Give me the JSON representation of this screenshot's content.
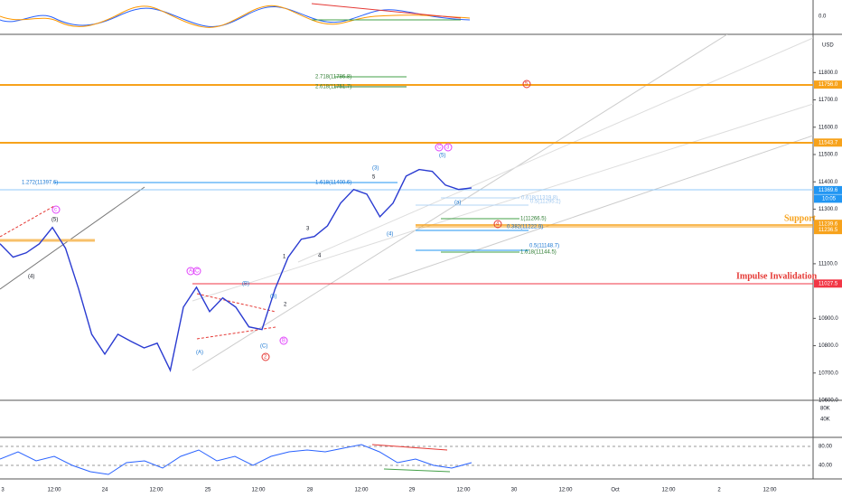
{
  "main": {
    "unit": "USD",
    "ylim": [
      10600,
      11940
    ],
    "yticks": [
      {
        "value": 10600,
        "label": "10600.0"
      },
      {
        "value": 10700,
        "label": "10700.0"
      },
      {
        "value": 10800,
        "label": "10800.0"
      },
      {
        "value": 10900,
        "label": "10900.0"
      },
      {
        "value": 11100,
        "label": "11100.0"
      },
      {
        "value": 11300,
        "label": "11300.0"
      },
      {
        "value": 11400,
        "label": "11400.0"
      },
      {
        "value": 11500,
        "label": "11500.0"
      },
      {
        "value": 11600,
        "label": "11600.0"
      },
      {
        "value": 11700,
        "label": "11700.0"
      },
      {
        "value": 11800,
        "label": "11800.0"
      }
    ],
    "price": [
      11173,
      11124,
      11140,
      11173,
      11233,
      11157,
      11008,
      10842,
      10769,
      10842,
      10816,
      10792,
      10809,
      10710,
      10941,
      11014,
      10925,
      10975,
      10941,
      10869,
      10859,
      11008,
      11124,
      11190,
      11200,
      11239,
      11322,
      11372,
      11355,
      11272,
      11322,
      11421,
      11445,
      11438,
      11388,
      11372,
      11378
    ],
    "price_tags": [
      {
        "value": 11756,
        "label": "11756.0",
        "color": "#f7a21b"
      },
      {
        "value": 11543.7,
        "label": "11543.7",
        "color": "#f7a21b"
      },
      {
        "value": 11369.6,
        "label": "11369.6",
        "color": "#2196f3"
      },
      {
        "value": 11239.6,
        "label": "11239.6",
        "color": "#f7a21b"
      },
      {
        "value": 11236.5,
        "label": "11236.5",
        "color": "#f7a21b"
      },
      {
        "value": 11027.5,
        "label": "11027.5",
        "color": "#f23645"
      }
    ],
    "countdown": "10:05",
    "annotations": [
      "2.718(11786.8)",
      "2.618(11751.7)",
      "1.272(11397.6)",
      "1.618(11400.6)",
      "0.618(11319.8)",
      "0.5(11295.2)",
      "1(11266.5)",
      "0.382(11222.9)",
      "0.5(11148.7)",
      "1.618(11144.5)",
      "Support",
      "Impulse Invalidation",
      "(5)",
      "c",
      "(4)",
      "A",
      "C",
      "(B)",
      "(A)",
      "(C)",
      "2",
      "B",
      "1",
      "2",
      "3",
      "4",
      "5",
      "(3)",
      "(4)",
      "(5)",
      "C",
      "3",
      "(a)",
      "4",
      "5",
      "(b)"
    ]
  },
  "top_pane": {
    "tick": "0.0"
  },
  "volume_pane": {
    "ticks": [
      "80K",
      "40K"
    ]
  },
  "rsi_pane": {
    "ticks": [
      "80.00",
      "40.00"
    ]
  },
  "time_axis": [
    "3",
    "12:00",
    "24",
    "12:00",
    "25",
    "12:00",
    "28",
    "12:00",
    "29",
    "12:00",
    "30",
    "12:00",
    "Oct",
    "12:00",
    "2",
    "12:00"
  ]
}
